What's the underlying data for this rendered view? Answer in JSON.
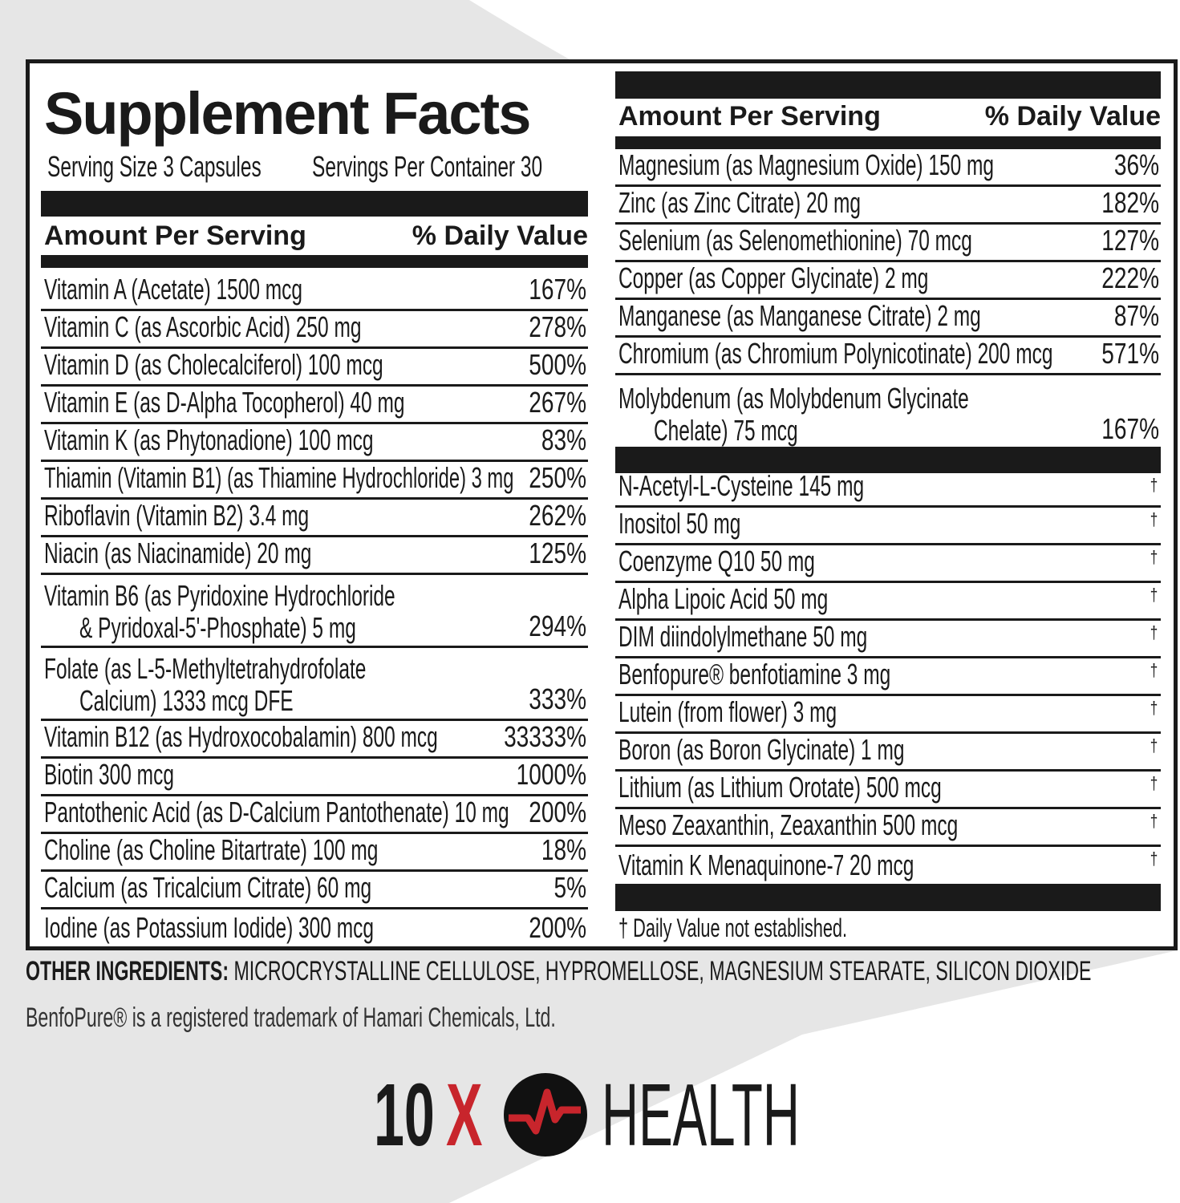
{
  "title": "Supplement Facts",
  "serving_size": "Serving Size 3 Capsules",
  "servings_per_container": "Servings Per Container 30",
  "amount_header": "Amount Per Serving",
  "dv_header": "% Daily Value",
  "left_rows": [
    {
      "name": "Vitamin A (Acetate) 1500 mcg",
      "dv": "167%"
    },
    {
      "name": "Vitamin C (as Ascorbic Acid) 250 mg",
      "dv": "278%"
    },
    {
      "name": "Vitamin D (as Cholecalciferol) 100 mcg",
      "dv": "500%"
    },
    {
      "name": "Vitamin E (as D-Alpha Tocopherol) 40 mg",
      "dv": "267%"
    },
    {
      "name": "Vitamin K (as Phytonadione) 100 mcg",
      "dv": "83%"
    },
    {
      "name": "Thiamin (Vitamin B1) (as Thiamine Hydrochloride) 3 mg",
      "dv": "250%"
    },
    {
      "name": "Riboflavin (Vitamin B2) 3.4 mg",
      "dv": "262%"
    },
    {
      "name": "Niacin (as Niacinamide) 20 mg",
      "dv": "125%"
    },
    {
      "name": "Vitamin B6 (as Pyridoxine Hydrochloride",
      "name2": "& Pyridoxal-5'-Phosphate) 5 mg",
      "dv": "294%"
    },
    {
      "name": "Folate (as L-5-Methyltetrahydrofolate",
      "name2": "Calcium) 1333 mcg DFE",
      "dv": "333%"
    },
    {
      "name": "Vitamin B12 (as Hydroxocobalamin) 800 mcg",
      "dv": "33333%"
    },
    {
      "name": "Biotin 300 mcg",
      "dv": "1000%"
    },
    {
      "name": "Pantothenic Acid (as D-Calcium Pantothenate) 10 mg",
      "dv": "200%"
    },
    {
      "name": "Choline (as Choline Bitartrate) 100 mg",
      "dv": "18%"
    },
    {
      "name": "Calcium (as Tricalcium Citrate) 60 mg",
      "dv": "5%"
    },
    {
      "name": "Iodine (as Potassium Iodide) 300 mcg",
      "dv": "200%"
    }
  ],
  "right_rows": [
    {
      "name": "Magnesium (as Magnesium Oxide) 150 mg",
      "dv": "36%"
    },
    {
      "name": "Zinc (as Zinc Citrate) 20 mg",
      "dv": "182%"
    },
    {
      "name": "Selenium (as Selenomethionine) 70 mcg",
      "dv": "127%"
    },
    {
      "name": "Copper (as Copper Glycinate) 2 mg",
      "dv": "222%"
    },
    {
      "name": "Manganese (as Manganese Citrate) 2 mg",
      "dv": "87%"
    },
    {
      "name": "Chromium (as Chromium Polynicotinate) 200 mcg",
      "dv": "571%"
    },
    {
      "name": "Molybdenum (as Molybdenum Glycinate",
      "name2": "Chelate) 75 mcg",
      "dv": "167%"
    }
  ],
  "other_rows": [
    {
      "name": "N-Acetyl-L-Cysteine 145 mg",
      "dv": "†"
    },
    {
      "name": "Inositol 50 mg",
      "dv": "†"
    },
    {
      "name": "Coenzyme Q10 50 mg",
      "dv": "†"
    },
    {
      "name": "Alpha Lipoic Acid 50 mg",
      "dv": "†"
    },
    {
      "name": "DIM diindolylmethane 50 mg",
      "dv": "†"
    },
    {
      "name": "Benfopure® benfotiamine 3 mg",
      "dv": "†"
    },
    {
      "name": "Lutein (from flower) 3 mg",
      "dv": "†"
    },
    {
      "name": "Boron (as Boron Glycinate) 1 mg",
      "dv": "†"
    },
    {
      "name": "Lithium (as Lithium Orotate) 500 mcg",
      "dv": "†"
    },
    {
      "name": "Meso Zeaxanthin, Zeaxanthin 500 mcg",
      "dv": "†"
    },
    {
      "name": "Vitamin K Menaquinone-7 20 mcg",
      "dv": "†"
    }
  ],
  "footnote": "† Daily Value not established.",
  "other_ingredients_label": "OTHER INGREDIENTS:",
  "other_ingredients": "MICROCRYSTALLINE CELLULOSE, HYPROMELLOSE, MAGNESIUM STEARATE, SILICON DIOXIDE",
  "trademark": "BenfoPure® is a registered trademark of Hamari Chemicals, Ltd.",
  "logo": {
    "left": "10",
    "x": "X",
    "right": "HEALTH",
    "accent": "#c8252c"
  }
}
